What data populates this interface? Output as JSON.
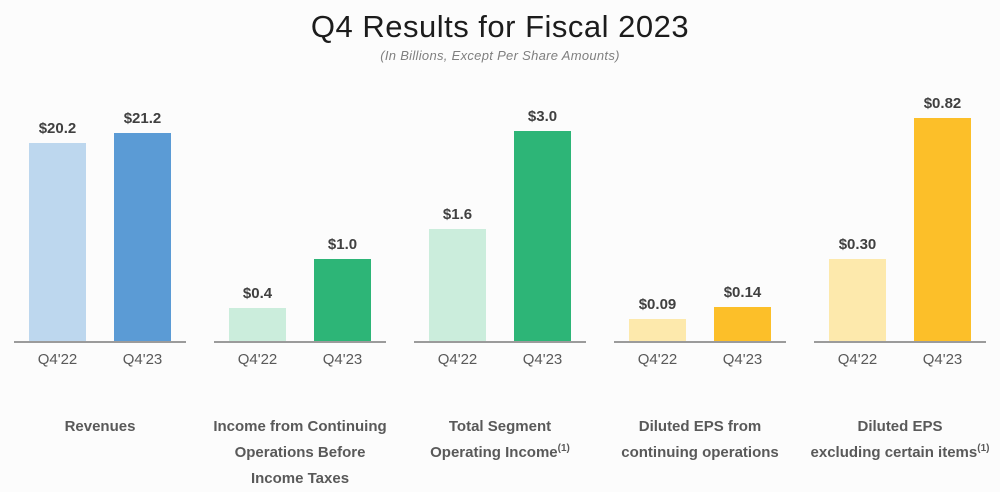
{
  "header": {
    "title": "Q4 Results for Fiscal 2023",
    "subtitle": "(In Billions, Except Per Share Amounts)"
  },
  "chart_data": [
    {
      "type": "bar",
      "name": "revenues",
      "title_lines": [
        {
          "text": "Revenues",
          "sup": ""
        }
      ],
      "categories": [
        "Q4'22",
        "Q4'23"
      ],
      "values": [
        20.2,
        21.2
      ],
      "value_labels": [
        "$20.2",
        "$21.2"
      ],
      "ylim": [
        0,
        25
      ],
      "bar_colors": [
        "#BDD7EE",
        "#5B9BD5"
      ],
      "grid": false,
      "legend": "none"
    },
    {
      "type": "bar",
      "name": "income-from-continuing-operations-before-income-taxes",
      "title_lines": [
        {
          "text": "Income from Continuing",
          "sup": ""
        },
        {
          "text": "Operations Before",
          "sup": ""
        },
        {
          "text": "Income Taxes",
          "sup": ""
        }
      ],
      "categories": [
        "Q4'22",
        "Q4'23"
      ],
      "values": [
        0.4,
        1.0
      ],
      "value_labels": [
        "$0.4",
        "$1.0"
      ],
      "ylim": [
        0,
        3.0
      ],
      "bar_colors": [
        "#CBEDDC",
        "#2DB577"
      ],
      "grid": false,
      "legend": "none"
    },
    {
      "type": "bar",
      "name": "total-segment-operating-income",
      "title_lines": [
        {
          "text": "Total Segment",
          "sup": ""
        },
        {
          "text": "Operating Income",
          "sup": "(1)"
        }
      ],
      "categories": [
        "Q4'22",
        "Q4'23"
      ],
      "values": [
        1.6,
        3.0
      ],
      "value_labels": [
        "$1.6",
        "$3.0"
      ],
      "ylim": [
        0,
        3.5
      ],
      "bar_colors": [
        "#CBEDDC",
        "#2DB577"
      ],
      "grid": false,
      "legend": "none"
    },
    {
      "type": "bar",
      "name": "diluted-eps-from-continuing-operations",
      "title_lines": [
        {
          "text": "Diluted EPS from",
          "sup": ""
        },
        {
          "text": "continuing operations",
          "sup": ""
        }
      ],
      "categories": [
        "Q4'22",
        "Q4'23"
      ],
      "values": [
        0.09,
        0.14
      ],
      "value_labels": [
        "$0.09",
        "$0.14"
      ],
      "ylim": [
        0,
        1.0
      ],
      "bar_colors": [
        "#FDE9AC",
        "#FCBF29"
      ],
      "grid": false,
      "legend": "none"
    },
    {
      "type": "bar",
      "name": "diluted-eps-excluding-certain-items",
      "title_lines": [
        {
          "text": "Diluted EPS",
          "sup": ""
        },
        {
          "text": "excluding certain items",
          "sup": "(1)"
        }
      ],
      "categories": [
        "Q4'22",
        "Q4'23"
      ],
      "values": [
        0.3,
        0.82
      ],
      "value_labels": [
        "$0.30",
        "$0.82"
      ],
      "ylim": [
        0,
        0.9
      ],
      "bar_colors": [
        "#FDE9AC",
        "#FCBF29"
      ],
      "grid": false,
      "legend": "none"
    }
  ],
  "layout_hints": {
    "axis_line_color": "#9B9B9B",
    "value_label_color": "#404040",
    "tick_label_color": "#595959",
    "chart_title_color": "#595959"
  }
}
